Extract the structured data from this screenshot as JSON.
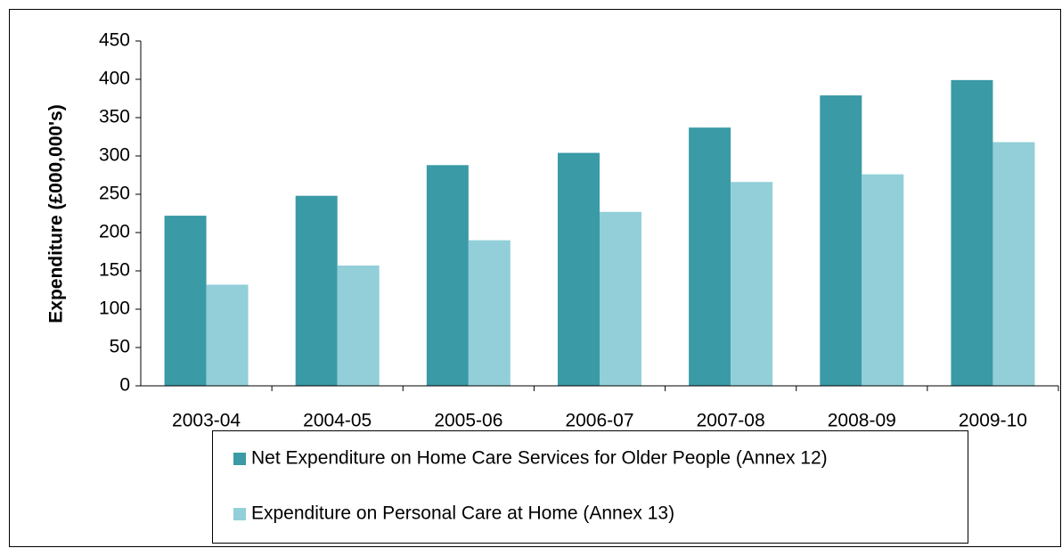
{
  "chart_data": {
    "type": "bar",
    "ylabel": "Expenditure (£000,000's)",
    "categories": [
      "2003-04",
      "2004-05",
      "2005-06",
      "2006-07",
      "2007-08",
      "2008-09",
      "2009-10"
    ],
    "series": [
      {
        "name": "Net Expenditure on Home Care Services for Older People (Annex 12)",
        "color": "#3a9aa6",
        "values": [
          222,
          248,
          288,
          304,
          337,
          379,
          399
        ]
      },
      {
        "name": "Expenditure on Personal Care at Home (Annex 13)",
        "color": "#92cfd9",
        "values": [
          132,
          157,
          190,
          227,
          266,
          276,
          318
        ]
      }
    ],
    "ylim": [
      0,
      450
    ],
    "yticks": [
      0,
      50,
      100,
      150,
      200,
      250,
      300,
      350,
      400,
      450
    ],
    "grid": false
  }
}
